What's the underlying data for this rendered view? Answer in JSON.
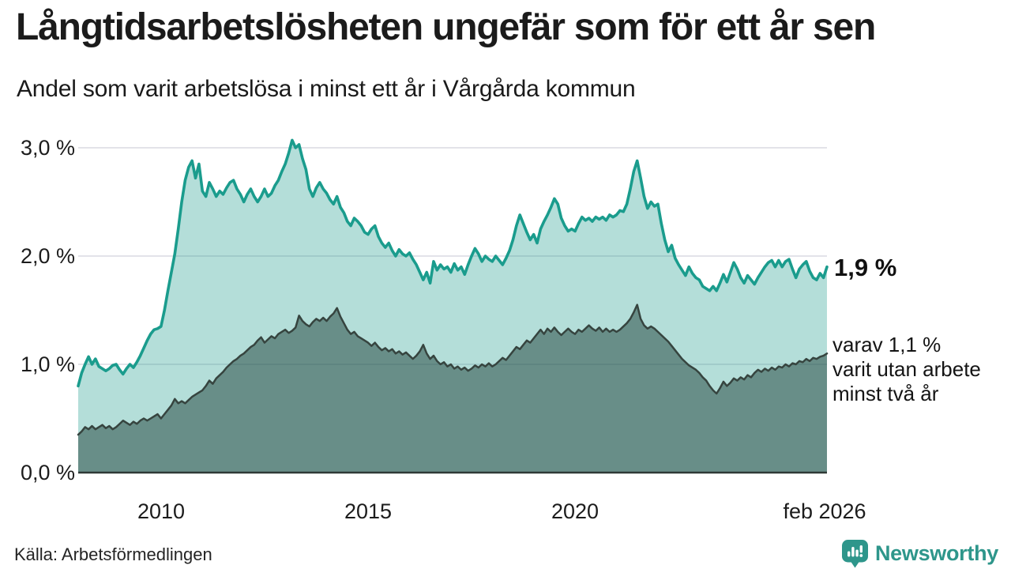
{
  "header": {
    "title": "Långtidsarbetslösheten ungefär som för ett år sen",
    "subtitle": "Andel som varit arbetslösa i minst ett år i Vårgårda kommun"
  },
  "chart_data": {
    "type": "area",
    "title": "Långtidsarbetslösheten ungefär som för ett år sen",
    "subtitle": "Andel som varit arbetslösa i minst ett år i Vårgårda kommun",
    "unit": "%",
    "frequency": "monthly",
    "x_start": "2008-01",
    "x_end": "2026-02",
    "ylim": [
      0,
      3.12
    ],
    "grid": "horizontal",
    "y_gridlines": [
      1,
      2,
      3
    ],
    "yticks": [
      {
        "value": 0,
        "label": "0,0 %"
      },
      {
        "value": 1,
        "label": "1,0 %"
      },
      {
        "value": 2,
        "label": "2,0 %"
      },
      {
        "value": 3,
        "label": "3,0 %"
      }
    ],
    "xticks": [
      {
        "year": 2010.0,
        "label": "2010"
      },
      {
        "year": 2015.0,
        "label": "2015"
      },
      {
        "year": 2020.0,
        "label": "2020"
      },
      {
        "year": 2026.083,
        "label": "feb 2026"
      }
    ],
    "series": [
      {
        "name": "Arbetslösa i minst ett år",
        "last_value": 1.9,
        "end_label": "1,9 %",
        "values": [
          0.8,
          0.92,
          1.0,
          1.07,
          1.0,
          1.05,
          0.98,
          0.96,
          0.94,
          0.96,
          0.99,
          1.0,
          0.95,
          0.91,
          0.96,
          1.0,
          0.97,
          1.02,
          1.08,
          1.15,
          1.22,
          1.28,
          1.32,
          1.33,
          1.35,
          1.5,
          1.68,
          1.85,
          2.02,
          2.25,
          2.5,
          2.7,
          2.82,
          2.88,
          2.72,
          2.85,
          2.6,
          2.55,
          2.68,
          2.62,
          2.55,
          2.6,
          2.57,
          2.63,
          2.68,
          2.7,
          2.62,
          2.57,
          2.5,
          2.57,
          2.62,
          2.55,
          2.5,
          2.55,
          2.62,
          2.55,
          2.58,
          2.65,
          2.7,
          2.78,
          2.85,
          2.95,
          3.07,
          3.0,
          3.03,
          2.9,
          2.8,
          2.62,
          2.55,
          2.63,
          2.68,
          2.62,
          2.58,
          2.52,
          2.48,
          2.55,
          2.45,
          2.4,
          2.32,
          2.28,
          2.35,
          2.32,
          2.28,
          2.22,
          2.2,
          2.25,
          2.28,
          2.18,
          2.12,
          2.08,
          2.12,
          2.05,
          2.0,
          2.06,
          2.02,
          2.0,
          2.03,
          1.97,
          1.92,
          1.85,
          1.78,
          1.85,
          1.75,
          1.95,
          1.87,
          1.92,
          1.88,
          1.9,
          1.85,
          1.93,
          1.87,
          1.9,
          1.83,
          1.92,
          2.0,
          2.07,
          2.02,
          1.95,
          2.0,
          1.97,
          1.95,
          2.0,
          1.96,
          1.92,
          1.98,
          2.05,
          2.15,
          2.28,
          2.38,
          2.3,
          2.22,
          2.15,
          2.2,
          2.12,
          2.25,
          2.32,
          2.38,
          2.45,
          2.53,
          2.48,
          2.35,
          2.28,
          2.23,
          2.25,
          2.23,
          2.3,
          2.36,
          2.33,
          2.35,
          2.32,
          2.36,
          2.34,
          2.36,
          2.33,
          2.38,
          2.36,
          2.38,
          2.42,
          2.41,
          2.48,
          2.62,
          2.78,
          2.88,
          2.72,
          2.55,
          2.44,
          2.5,
          2.46,
          2.48,
          2.3,
          2.15,
          2.04,
          2.1,
          1.98,
          1.92,
          1.87,
          1.82,
          1.9,
          1.84,
          1.8,
          1.78,
          1.72,
          1.7,
          1.68,
          1.72,
          1.68,
          1.75,
          1.83,
          1.76,
          1.85,
          1.94,
          1.88,
          1.8,
          1.75,
          1.82,
          1.78,
          1.74,
          1.8,
          1.85,
          1.9,
          1.94,
          1.96,
          1.9,
          1.96,
          1.9,
          1.95,
          1.97,
          1.88,
          1.8,
          1.88,
          1.92,
          1.95,
          1.86,
          1.8,
          1.78,
          1.84,
          1.8,
          1.9
        ]
      },
      {
        "name": "varav utan arbete minst två år",
        "last_value": 1.1,
        "end_label": "varav 1,1 % varit utan arbete minst två år",
        "values": [
          0.35,
          0.38,
          0.42,
          0.4,
          0.43,
          0.4,
          0.42,
          0.44,
          0.41,
          0.43,
          0.4,
          0.42,
          0.45,
          0.48,
          0.46,
          0.44,
          0.47,
          0.45,
          0.48,
          0.5,
          0.48,
          0.5,
          0.52,
          0.54,
          0.5,
          0.54,
          0.58,
          0.62,
          0.68,
          0.64,
          0.66,
          0.64,
          0.67,
          0.7,
          0.72,
          0.74,
          0.76,
          0.8,
          0.85,
          0.82,
          0.87,
          0.9,
          0.93,
          0.97,
          1.0,
          1.03,
          1.05,
          1.08,
          1.1,
          1.13,
          1.16,
          1.18,
          1.22,
          1.25,
          1.2,
          1.23,
          1.26,
          1.24,
          1.28,
          1.3,
          1.32,
          1.29,
          1.31,
          1.34,
          1.45,
          1.4,
          1.37,
          1.35,
          1.39,
          1.42,
          1.4,
          1.43,
          1.4,
          1.44,
          1.47,
          1.52,
          1.44,
          1.38,
          1.32,
          1.28,
          1.3,
          1.26,
          1.24,
          1.22,
          1.2,
          1.17,
          1.2,
          1.16,
          1.13,
          1.15,
          1.12,
          1.14,
          1.1,
          1.12,
          1.09,
          1.11,
          1.08,
          1.05,
          1.08,
          1.12,
          1.18,
          1.1,
          1.05,
          1.08,
          1.03,
          1.0,
          1.02,
          0.98,
          1.0,
          0.96,
          0.98,
          0.95,
          0.97,
          0.94,
          0.96,
          0.99,
          0.97,
          1.0,
          0.98,
          1.01,
          0.98,
          1.0,
          1.03,
          1.06,
          1.04,
          1.08,
          1.12,
          1.16,
          1.14,
          1.18,
          1.22,
          1.2,
          1.24,
          1.28,
          1.32,
          1.28,
          1.33,
          1.3,
          1.34,
          1.3,
          1.27,
          1.3,
          1.33,
          1.3,
          1.28,
          1.32,
          1.3,
          1.33,
          1.36,
          1.33,
          1.31,
          1.34,
          1.3,
          1.33,
          1.3,
          1.32,
          1.3,
          1.32,
          1.35,
          1.38,
          1.42,
          1.48,
          1.55,
          1.42,
          1.36,
          1.33,
          1.35,
          1.33,
          1.3,
          1.27,
          1.24,
          1.21,
          1.17,
          1.13,
          1.09,
          1.05,
          1.02,
          0.99,
          0.97,
          0.95,
          0.92,
          0.88,
          0.85,
          0.8,
          0.76,
          0.73,
          0.78,
          0.84,
          0.8,
          0.83,
          0.87,
          0.85,
          0.88,
          0.86,
          0.9,
          0.88,
          0.92,
          0.95,
          0.93,
          0.96,
          0.94,
          0.97,
          0.95,
          0.98,
          0.97,
          1.0,
          0.98,
          1.01,
          1.0,
          1.03,
          1.02,
          1.05,
          1.03,
          1.06,
          1.05,
          1.07,
          1.08,
          1.1
        ]
      }
    ],
    "colors": {
      "series1_line": "#1a9c8d",
      "series1_fill": "rgba(26,156,141,0.33)",
      "series2_line": "#36443f",
      "series2_fill": "rgba(42,77,70,0.55)",
      "grid": "#e3e3e9",
      "baseline": "#2f3a37",
      "brand_teal": "#2e968b"
    }
  },
  "annotations": {
    "primary": "1,9 %",
    "secondary_lines": [
      "varav 1,1 %",
      "varit utan arbete",
      "minst två år"
    ]
  },
  "footer": {
    "source": "Källa: Arbetsförmedlingen",
    "brand": "Newsworthy"
  }
}
